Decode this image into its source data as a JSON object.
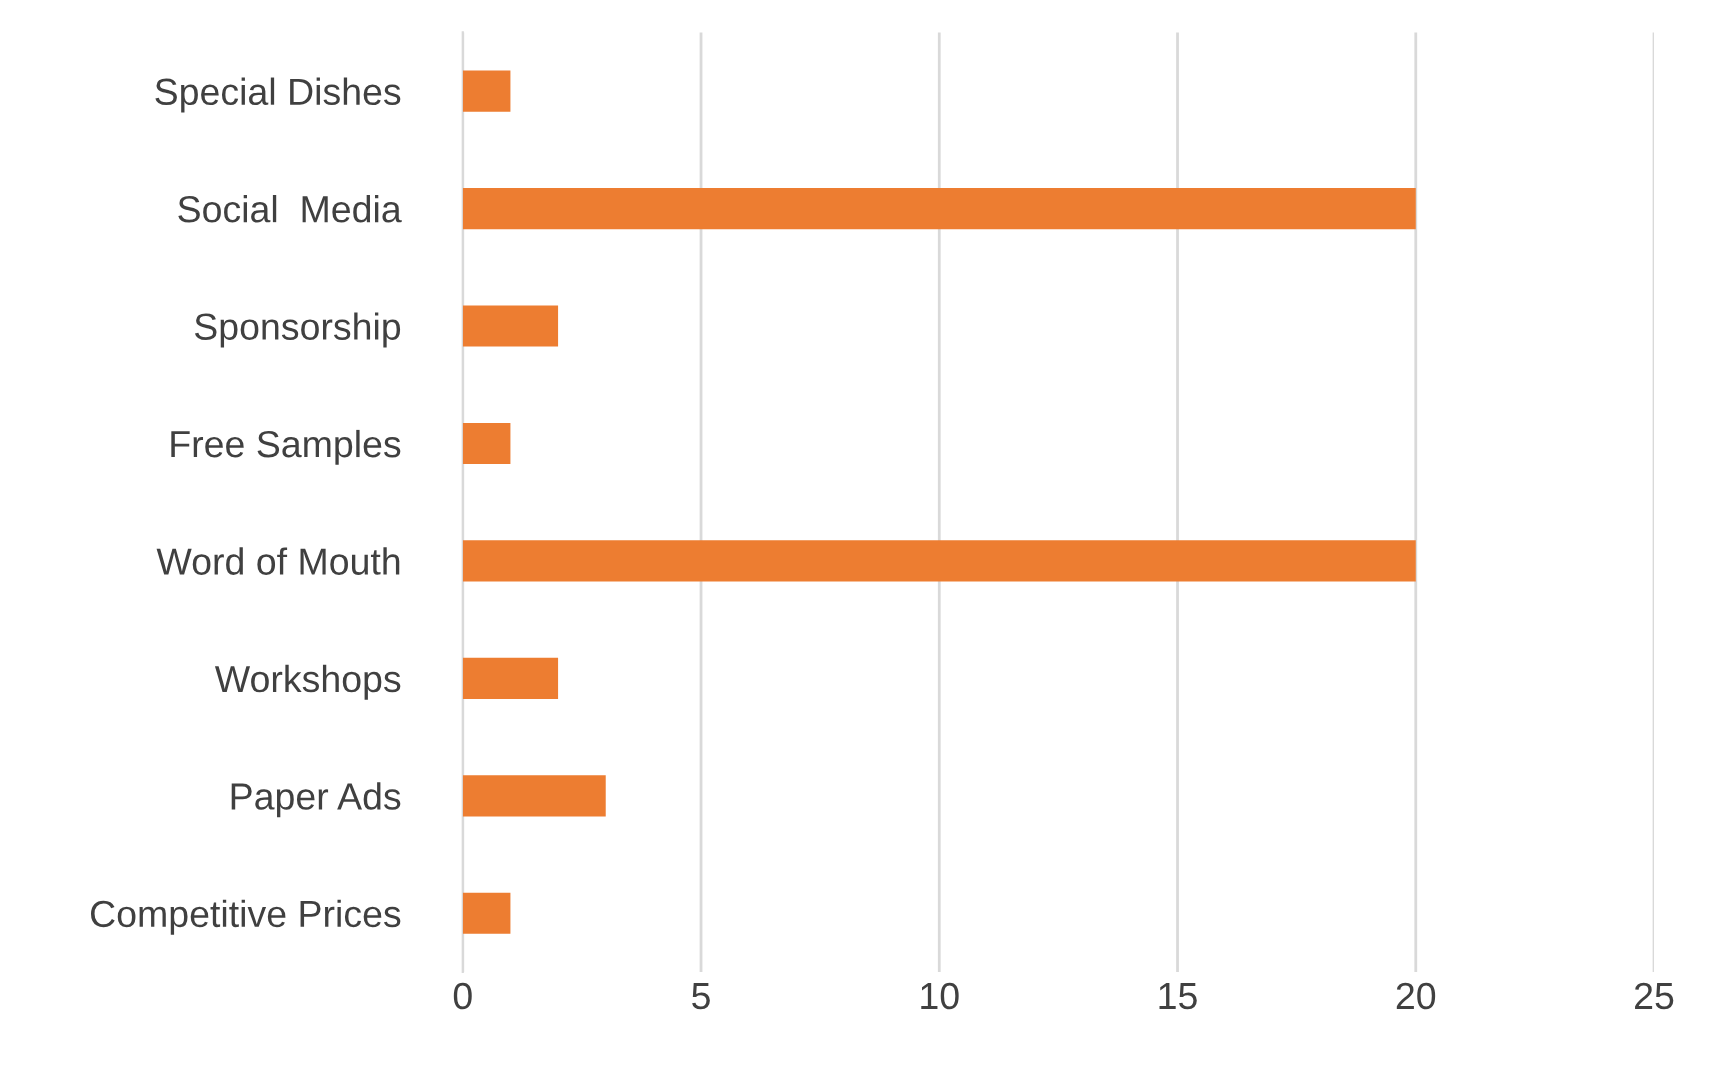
{
  "chart_data": {
    "type": "bar",
    "orientation": "horizontal",
    "categories": [
      "Special Dishes",
      "Social  Media",
      "Sponsorship",
      "Free Samples",
      "Word of Mouth",
      "Workshops",
      "Paper Ads",
      "Competitive Prices"
    ],
    "values": [
      1,
      20,
      2,
      1,
      20,
      2,
      3,
      1
    ],
    "color": "#ed7d31",
    "xlim": [
      0,
      25
    ],
    "xticks": [
      0,
      5,
      10,
      15,
      20,
      25
    ],
    "grid": "x",
    "legend": false
  }
}
